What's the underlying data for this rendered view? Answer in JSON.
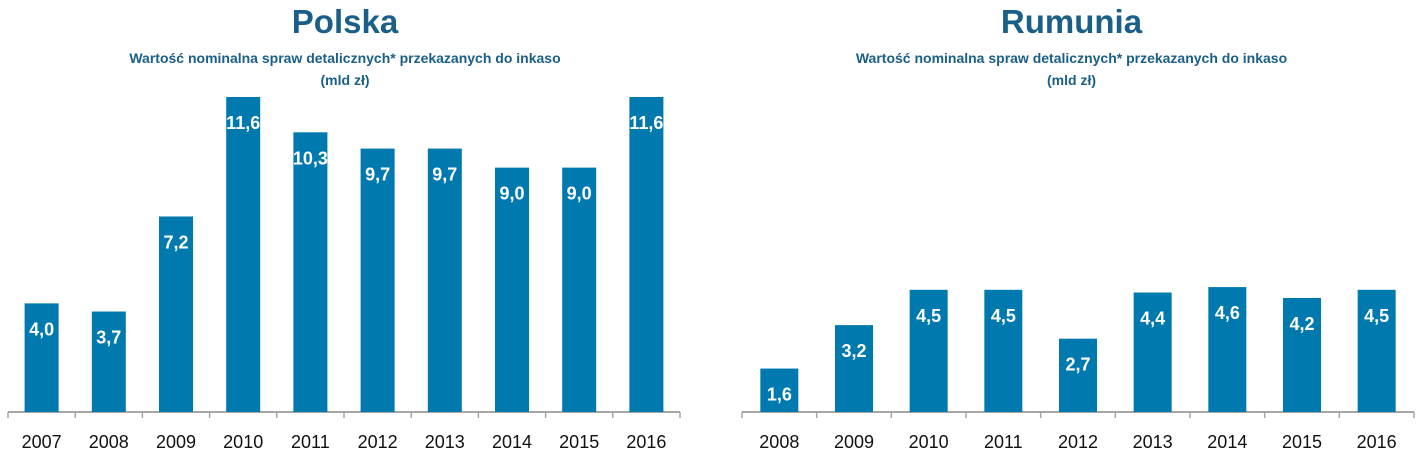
{
  "colors": {
    "bar": "#0079ae",
    "title": "#1a5f87",
    "axis": "#a6a6a6",
    "bar_label": "#ffffff"
  },
  "chart_data": [
    {
      "type": "bar",
      "title": "Polska",
      "subtitle_line1": "Wartość nominalna spraw detalicznych* przekazanych do inkaso",
      "subtitle_line2": "(mld zł)",
      "categories": [
        "2007",
        "2008",
        "2009",
        "2010",
        "2011",
        "2012",
        "2013",
        "2014",
        "2015",
        "2016"
      ],
      "values": [
        4.0,
        3.7,
        7.2,
        11.6,
        10.3,
        9.7,
        9.7,
        9.0,
        9.0,
        11.6
      ],
      "value_labels": [
        "4,0",
        "3,7",
        "7,2",
        "11,6",
        "10,3",
        "9,7",
        "9,7",
        "9,0",
        "9,0",
        "11,6"
      ],
      "ylim": [
        0,
        11.6
      ],
      "grid": false,
      "xlabel": "",
      "ylabel": ""
    },
    {
      "type": "bar",
      "title": "Rumunia",
      "subtitle_line1": "Wartość nominalna spraw detalicznych* przekazanych do inkaso",
      "subtitle_line2": "(mld zł)",
      "categories": [
        "2008",
        "2009",
        "2010",
        "2011",
        "2012",
        "2013",
        "2014",
        "2015",
        "2016"
      ],
      "values": [
        1.6,
        3.2,
        4.5,
        4.5,
        2.7,
        4.4,
        4.6,
        4.2,
        4.5
      ],
      "value_labels": [
        "1,6",
        "3,2",
        "4,5",
        "4,5",
        "2,7",
        "4,4",
        "4,6",
        "4,2",
        "4,5"
      ],
      "ylim": [
        0,
        11.6
      ],
      "grid": false,
      "xlabel": "",
      "ylabel": ""
    }
  ]
}
